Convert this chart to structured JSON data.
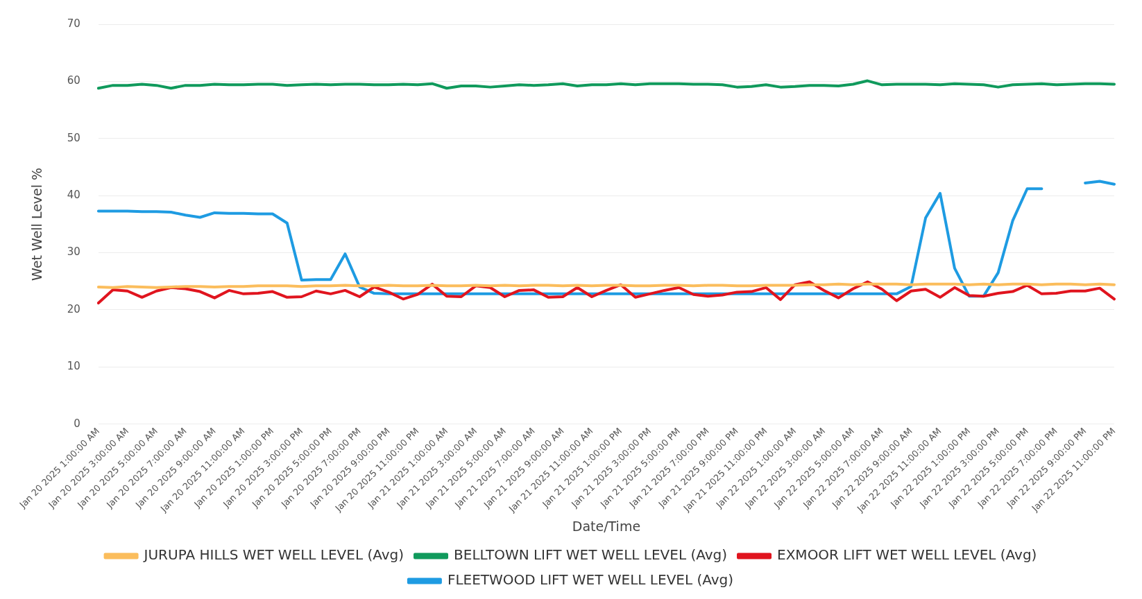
{
  "chart_data": {
    "type": "line",
    "xlabel": "Date/Time",
    "ylabel": "Wet Well Level %",
    "categories": [
      "Jan 20 2025 1:00:00 AM",
      null,
      "Jan 20 2025 3:00:00 AM",
      null,
      "Jan 20 2025 5:00:00 AM",
      null,
      "Jan 20 2025 7:00:00 AM",
      null,
      "Jan 20 2025 9:00:00 AM",
      null,
      "Jan 20 2025 11:00:00 AM",
      null,
      "Jan 20 2025 1:00:00 PM",
      null,
      "Jan 20 2025 3:00:00 PM",
      null,
      "Jan 20 2025 5:00:00 PM",
      null,
      "Jan 20 2025 7:00:00 PM",
      null,
      "Jan 20 2025 9:00:00 PM",
      null,
      "Jan 20 2025 11:00:00 PM",
      null,
      "Jan 21 2025 1:00:00 AM",
      null,
      "Jan 21 2025 3:00:00 AM",
      null,
      "Jan 21 2025 5:00:00 AM",
      null,
      "Jan 21 2025 7:00:00 AM",
      null,
      "Jan 21 2025 9:00:00 AM",
      null,
      "Jan 21 2025 11:00:00 AM",
      null,
      "Jan 21 2025 1:00:00 PM",
      null,
      "Jan 21 2025 3:00:00 PM",
      null,
      "Jan 21 2025 5:00:00 PM",
      null,
      "Jan 21 2025 7:00:00 PM",
      null,
      "Jan 21 2025 9:00:00 PM",
      null,
      "Jan 21 2025 11:00:00 PM",
      null,
      "Jan 22 2025 1:00:00 AM",
      null,
      "Jan 22 2025 3:00:00 AM",
      null,
      "Jan 22 2025 5:00:00 AM",
      null,
      "Jan 22 2025 7:00:00 AM",
      null,
      "Jan 22 2025 9:00:00 AM",
      null,
      "Jan 22 2025 11:00:00 AM",
      null,
      "Jan 22 2025 1:00:00 PM",
      null,
      "Jan 22 2025 3:00:00 PM",
      null,
      "Jan 22 2025 5:00:00 PM",
      null,
      "Jan 22 2025 7:00:00 PM",
      null,
      "Jan 22 2025 9:00:00 PM",
      null,
      "Jan 22 2025 11:00:00 PM"
    ],
    "series": [
      {
        "name": "JURUPA HILLS WET WELL LEVEL (Avg)",
        "color": "#fbbd5c",
        "values": [
          24.0,
          23.9,
          24.1,
          24.0,
          23.9,
          24.0,
          24.1,
          24.1,
          24.0,
          24.1,
          24.1,
          24.2,
          24.2,
          24.2,
          24.1,
          24.2,
          24.2,
          24.3,
          24.2,
          24.2,
          24.3,
          24.2,
          24.2,
          24.3,
          24.2,
          24.2,
          24.3,
          24.2,
          24.3,
          24.2,
          24.3,
          24.3,
          24.2,
          24.3,
          24.2,
          24.3,
          24.3,
          24.2,
          24.2,
          24.3,
          24.3,
          24.2,
          24.3,
          24.3,
          24.2,
          24.2,
          24.3,
          24.3,
          24.3,
          24.4,
          24.4,
          24.5,
          24.4,
          24.5,
          24.5,
          24.5,
          24.4,
          24.5,
          24.5,
          24.5,
          24.4,
          24.5,
          24.4,
          24.5,
          24.5,
          24.4,
          24.5,
          24.5,
          24.4,
          24.5,
          24.4
        ]
      },
      {
        "name": "BELLTOWN LIFT WET WELL LEVEL (Avg)",
        "color": "#109a5c",
        "values": [
          58.8,
          59.3,
          59.3,
          59.5,
          59.3,
          58.8,
          59.3,
          59.3,
          59.5,
          59.4,
          59.4,
          59.5,
          59.5,
          59.3,
          59.4,
          59.5,
          59.4,
          59.5,
          59.5,
          59.4,
          59.4,
          59.5,
          59.4,
          59.6,
          58.8,
          59.2,
          59.2,
          59.0,
          59.2,
          59.4,
          59.3,
          59.4,
          59.6,
          59.2,
          59.4,
          59.4,
          59.6,
          59.4,
          59.6,
          59.6,
          59.6,
          59.5,
          59.5,
          59.4,
          59.0,
          59.1,
          59.4,
          59.0,
          59.1,
          59.3,
          59.3,
          59.2,
          59.5,
          60.1,
          59.4,
          59.5,
          59.5,
          59.5,
          59.4,
          59.6,
          59.5,
          59.4,
          59.0,
          59.4,
          59.5,
          59.6,
          59.4,
          59.5,
          59.6,
          59.6,
          59.5
        ]
      },
      {
        "name": "EXMOOR LIFT WET WELL LEVEL (Avg)",
        "color": "#e0141e",
        "values": [
          21.2,
          23.5,
          23.3,
          22.2,
          23.3,
          23.9,
          23.7,
          23.2,
          22.1,
          23.4,
          22.8,
          22.9,
          23.2,
          22.2,
          22.3,
          23.3,
          22.8,
          23.4,
          22.3,
          24.0,
          23.1,
          21.9,
          22.7,
          24.5,
          22.4,
          22.3,
          24.2,
          23.9,
          22.3,
          23.4,
          23.5,
          22.2,
          22.3,
          23.9,
          22.3,
          23.4,
          24.4,
          22.2,
          22.8,
          23.4,
          23.9,
          22.7,
          22.4,
          22.6,
          23.1,
          23.2,
          23.9,
          21.8,
          24.4,
          24.9,
          23.4,
          22.1,
          23.7,
          24.9,
          23.6,
          21.6,
          23.3,
          23.6,
          22.2,
          23.9,
          22.5,
          22.4,
          22.9,
          23.2,
          24.3,
          22.8,
          22.9,
          23.3,
          23.3,
          23.8,
          21.9
        ]
      },
      {
        "name": "FLEETWOOD LIFT WET WELL LEVEL (Avg)",
        "color": "#1e9be2",
        "values": [
          37.3,
          37.3,
          37.3,
          37.2,
          37.2,
          37.1,
          36.6,
          36.2,
          37.0,
          36.9,
          36.9,
          36.8,
          36.8,
          35.2,
          25.2,
          25.3,
          25.3,
          29.8,
          24.0,
          22.9,
          22.8,
          22.8,
          22.8,
          22.8,
          22.8,
          22.8,
          22.8,
          22.8,
          22.8,
          22.8,
          22.8,
          22.8,
          22.8,
          22.8,
          22.8,
          22.8,
          22.8,
          22.8,
          22.8,
          22.8,
          22.8,
          22.8,
          22.8,
          22.8,
          22.8,
          22.8,
          22.8,
          22.8,
          22.8,
          22.8,
          22.8,
          22.8,
          22.8,
          22.8,
          22.8,
          22.8,
          24.1,
          36.1,
          40.4,
          27.3,
          22.4,
          22.4,
          26.5,
          35.6,
          41.2,
          41.2,
          null,
          null,
          42.2,
          42.5,
          42.0
        ]
      }
    ],
    "ylim": [
      0,
      70
    ],
    "yticks": [
      0,
      10,
      20,
      30,
      40,
      50,
      60,
      70
    ],
    "grid": "y",
    "legend": "bottom",
    "marker": "none",
    "line_style": "solid"
  }
}
